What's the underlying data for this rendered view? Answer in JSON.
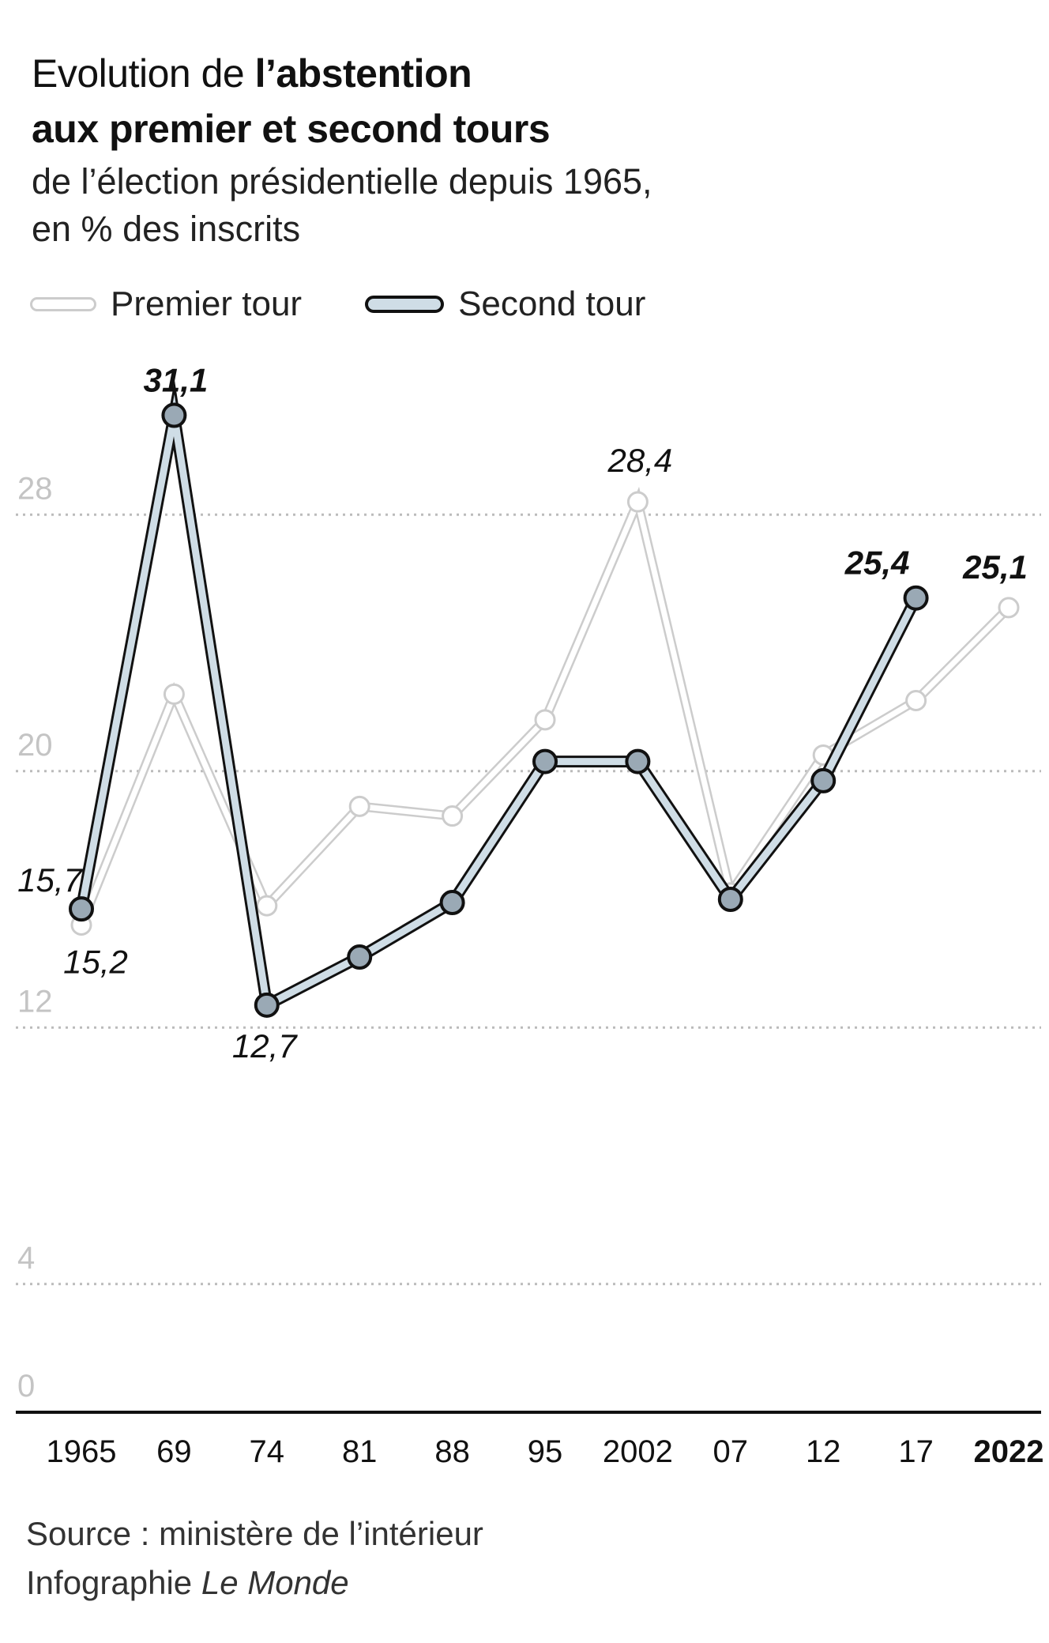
{
  "title": {
    "prefix": "Evolution de ",
    "bold_part1": "l’abstention",
    "bold_part2": "aux premier et second tours"
  },
  "subtitle": {
    "line1": "de  l’élection présidentielle depuis 1965,",
    "line2": "en % des inscrits"
  },
  "legend": {
    "first": "Premier tour",
    "second": "Second tour"
  },
  "source": {
    "line1": "Source : ministère de l’intérieur",
    "line2_prefix": "Infographie ",
    "line2_italic": "Le Monde"
  },
  "colors": {
    "first_line": "#cccccc",
    "second_line": "#111111",
    "second_fill": "#cfdde6",
    "second_marker": "#9aa9b5",
    "grid": "#bbbbbb",
    "axis": "#111111",
    "tick_label": "#c4c4c4"
  },
  "chart_data": {
    "type": "line",
    "categories": [
      "1965",
      "69",
      "74",
      "81",
      "88",
      "95",
      "2002",
      "07",
      "12",
      "17",
      "2022"
    ],
    "highlight_category": "2022",
    "ylim": [
      0,
      32
    ],
    "yticks": [
      0,
      4,
      12,
      20,
      28
    ],
    "grid": true,
    "legend_position": "top-left",
    "series": [
      {
        "name": "Premier tour",
        "values": [
          15.2,
          22.4,
          15.8,
          18.9,
          18.6,
          21.6,
          28.4,
          16.2,
          20.5,
          22.2,
          25.1
        ]
      },
      {
        "name": "Second tour",
        "values": [
          15.7,
          31.1,
          12.7,
          14.2,
          15.9,
          20.3,
          20.3,
          16.0,
          19.7,
          25.4,
          null
        ]
      }
    ],
    "annotations": [
      {
        "series": "Second tour",
        "category": "1965",
        "text": "15,7",
        "style": "italic"
      },
      {
        "series": "Premier tour",
        "category": "1965",
        "text": "15,2",
        "style": "italic"
      },
      {
        "series": "Second tour",
        "category": "69",
        "text": "31,1",
        "style": "bold-italic"
      },
      {
        "series": "Second tour",
        "category": "74",
        "text": "12,7",
        "style": "italic"
      },
      {
        "series": "Premier tour",
        "category": "2002",
        "text": "28,4",
        "style": "italic"
      },
      {
        "series": "Second tour",
        "category": "17",
        "text": "25,4",
        "style": "bold-italic"
      },
      {
        "series": "Premier tour",
        "category": "2022",
        "text": "25,1",
        "style": "bold-italic"
      }
    ]
  }
}
